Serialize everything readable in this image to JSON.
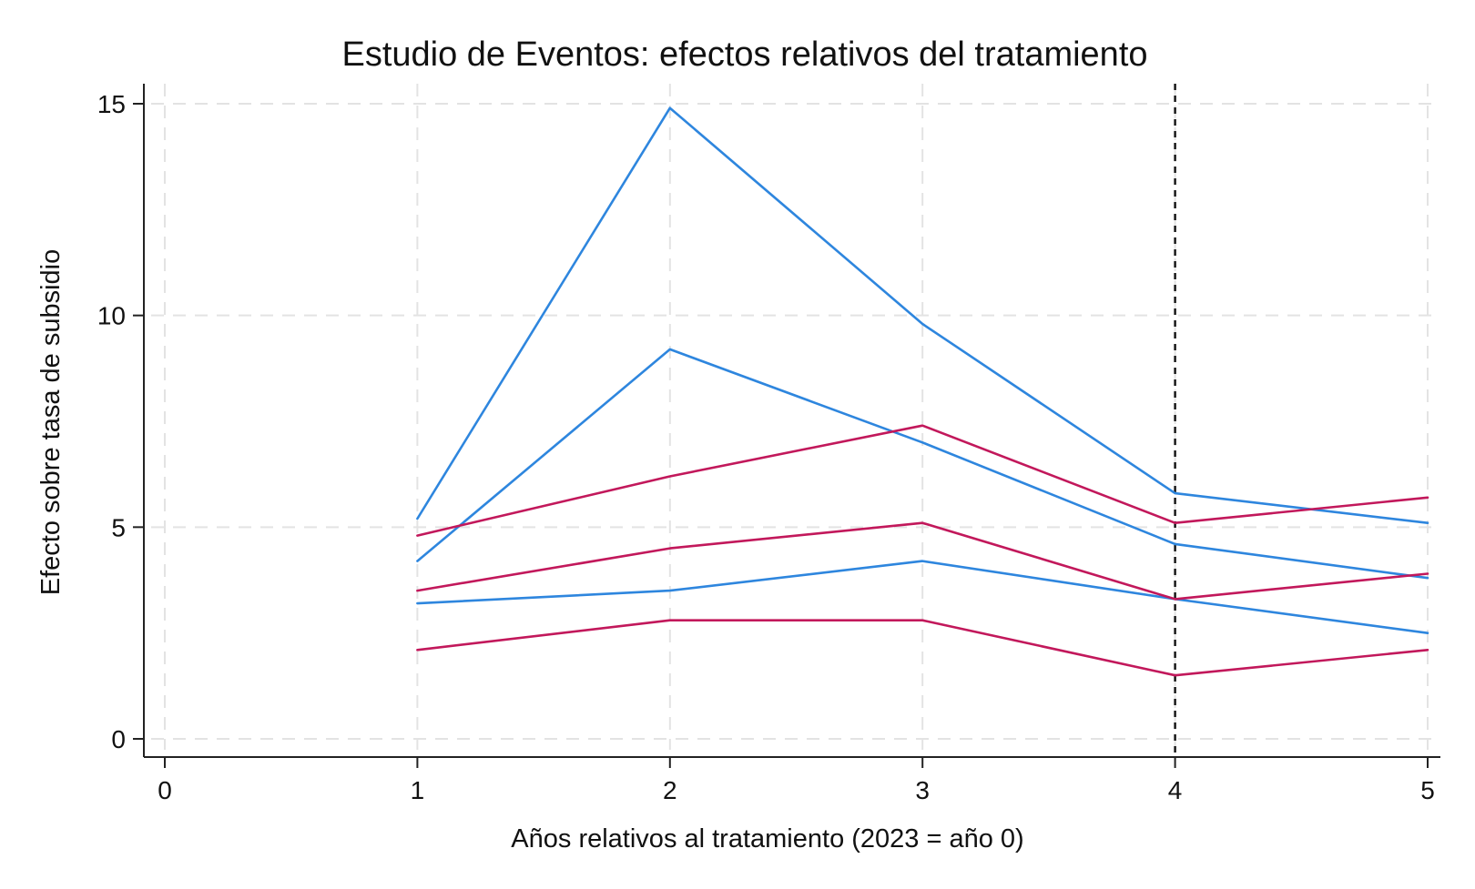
{
  "chart_data": {
    "type": "line",
    "title": "Estudio de Eventos: efectos relativos del tratamiento",
    "xlabel": "Años relativos al tratamiento (2023 = año 0)",
    "ylabel": "Efecto sobre tasa de subsidio",
    "xlim": [
      0,
      5
    ],
    "ylim": [
      0,
      15
    ],
    "xticks": [
      0,
      1,
      2,
      3,
      4,
      5
    ],
    "yticks": [
      0,
      5,
      10,
      15
    ],
    "grid": true,
    "reference_line_x": 4,
    "x": [
      1,
      2,
      3,
      4,
      5
    ],
    "series": [
      {
        "color": "#2e86de",
        "values": [
          5.2,
          14.9,
          9.8,
          5.8,
          5.1
        ]
      },
      {
        "color": "#2e86de",
        "values": [
          4.2,
          9.2,
          7.0,
          4.6,
          3.8
        ]
      },
      {
        "color": "#2e86de",
        "values": [
          3.2,
          3.5,
          4.2,
          3.3,
          2.5
        ]
      },
      {
        "color": "#c2185b",
        "values": [
          4.8,
          6.2,
          7.4,
          5.1,
          5.7
        ]
      },
      {
        "color": "#c2185b",
        "values": [
          3.5,
          4.5,
          5.1,
          3.3,
          3.9
        ]
      },
      {
        "color": "#c2185b",
        "values": [
          2.1,
          2.8,
          2.8,
          1.5,
          2.1
        ]
      }
    ]
  }
}
